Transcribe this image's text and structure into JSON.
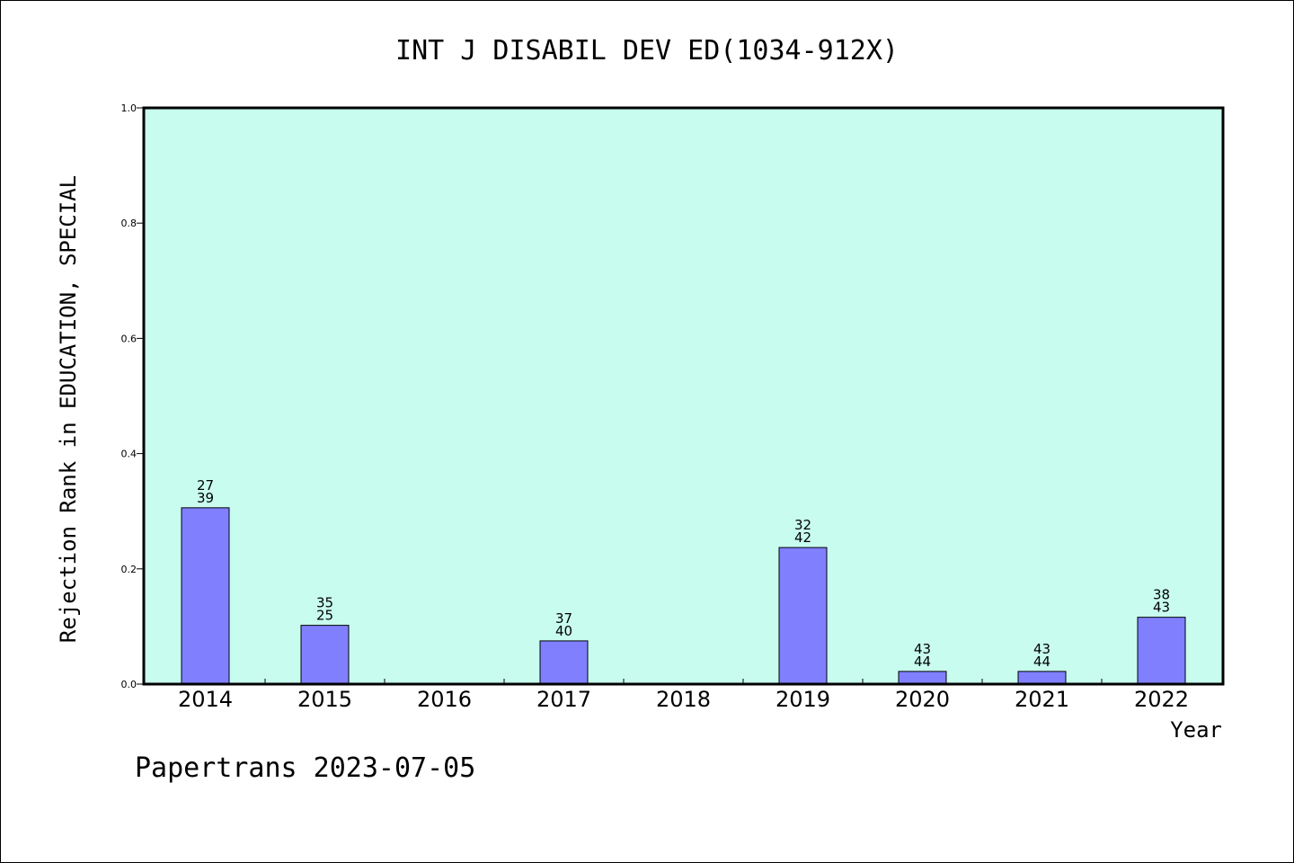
{
  "chart_data": {
    "type": "bar",
    "title": "INT J DISABIL DEV ED(1034-912X)",
    "xlabel": "Year",
    "ylabel": "Rejection Rank in EDUCATION, SPECIAL",
    "categories": [
      "2014",
      "2015",
      "2016",
      "2017",
      "2018",
      "2019",
      "2020",
      "2021",
      "2022"
    ],
    "values": [
      0.306,
      0.102,
      null,
      0.075,
      null,
      0.237,
      0.022,
      0.022,
      0.116
    ],
    "labels_top": [
      "27",
      "35",
      "",
      "37",
      "",
      "32",
      "43",
      "43",
      "38"
    ],
    "labels_bottom": [
      "39",
      "25",
      "",
      "40",
      "",
      "42",
      "44",
      "44",
      "43"
    ],
    "ylim": [
      0,
      1.0
    ],
    "yticks": [
      "0.0",
      "0.2",
      "0.4",
      "0.6",
      "0.8",
      "1.0"
    ],
    "grid": false,
    "colors": {
      "plot_background": "#c8fcee",
      "bar_fill": "#8080ff",
      "bar_stroke": "#000000"
    }
  },
  "footer": "Papertrans 2023-07-05"
}
